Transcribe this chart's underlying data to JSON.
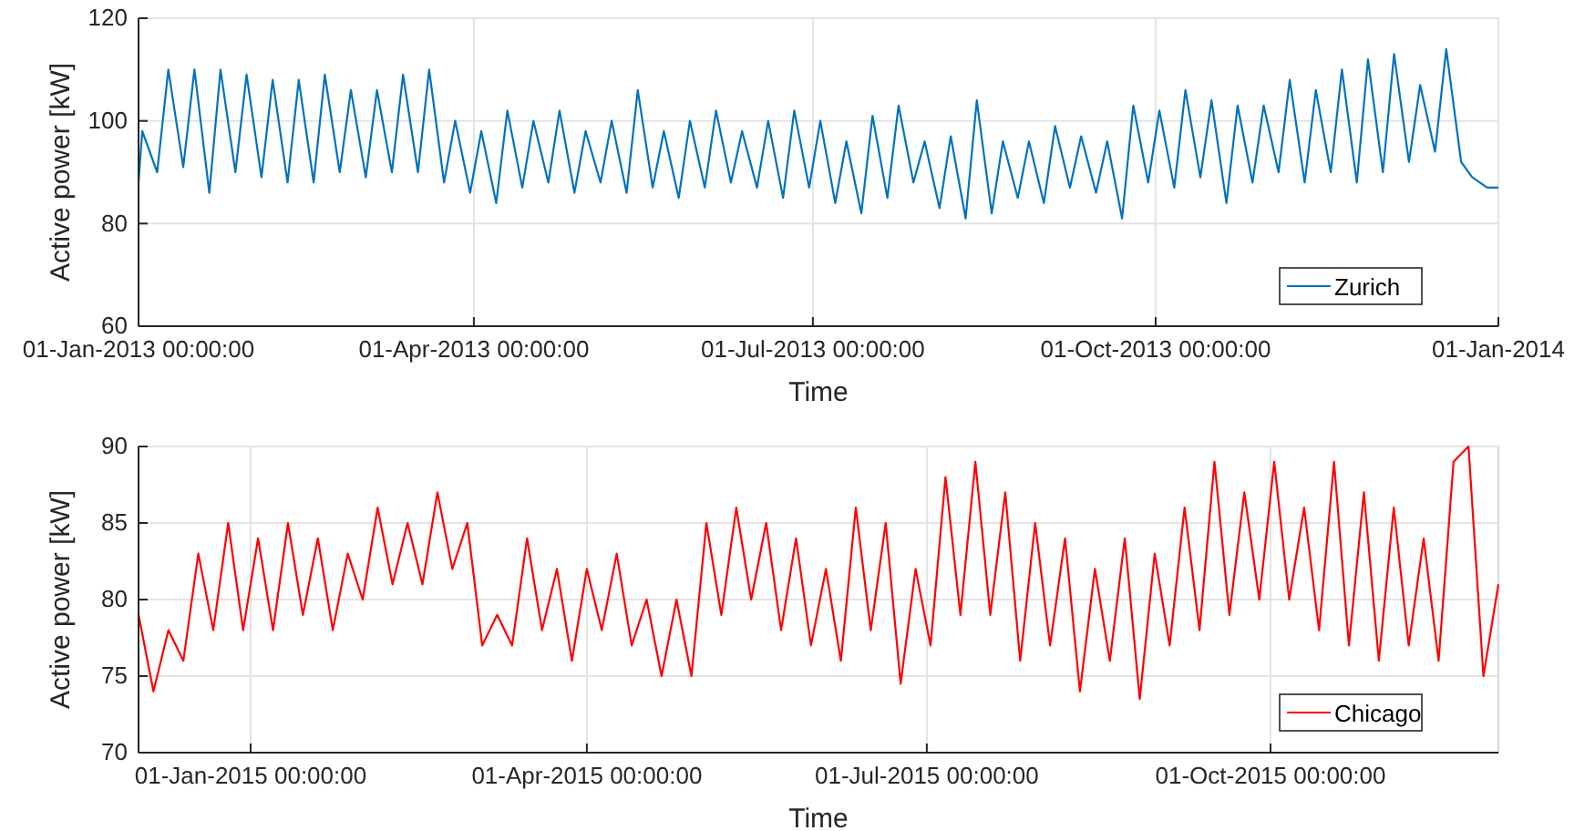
{
  "chart_data": [
    {
      "type": "line",
      "xlabel": "Time",
      "ylabel": "Active power [kW]",
      "xlim": [
        "2013-01-01",
        "2014-01-01"
      ],
      "ylim": [
        60,
        120
      ],
      "yticks": [
        60,
        80,
        100,
        120
      ],
      "xticks": [
        {
          "value": "2013-01-01",
          "label": "01-Jan-2013 00:00:00"
        },
        {
          "value": "2013-04-01",
          "label": "01-Apr-2013 00:00:00"
        },
        {
          "value": "2013-07-01",
          "label": "01-Jul-2013 00:00:00"
        },
        {
          "value": "2013-10-01",
          "label": "01-Oct-2013 00:00:00"
        },
        {
          "value": "2014-01-01",
          "label": "01-Jan-2014"
        }
      ],
      "grid": true,
      "legend": "bottom right",
      "x": [
        "2013-01-01",
        "2013-01-02",
        "2013-01-06",
        "2013-01-09",
        "2013-01-13",
        "2013-01-16",
        "2013-01-20",
        "2013-01-23",
        "2013-01-27",
        "2013-01-30",
        "2013-02-03",
        "2013-02-06",
        "2013-02-10",
        "2013-02-13",
        "2013-02-17",
        "2013-02-20",
        "2013-02-24",
        "2013-02-27",
        "2013-03-03",
        "2013-03-06",
        "2013-03-10",
        "2013-03-13",
        "2013-03-17",
        "2013-03-20",
        "2013-03-24",
        "2013-03-27",
        "2013-03-31",
        "2013-04-03",
        "2013-04-07",
        "2013-04-10",
        "2013-04-14",
        "2013-04-17",
        "2013-04-21",
        "2013-04-24",
        "2013-04-28",
        "2013-05-01",
        "2013-05-05",
        "2013-05-08",
        "2013-05-12",
        "2013-05-15",
        "2013-05-19",
        "2013-05-22",
        "2013-05-26",
        "2013-05-29",
        "2013-06-02",
        "2013-06-05",
        "2013-06-09",
        "2013-06-12",
        "2013-06-16",
        "2013-06-19",
        "2013-06-23",
        "2013-06-26",
        "2013-06-30",
        "2013-07-03",
        "2013-07-07",
        "2013-07-10",
        "2013-07-14",
        "2013-07-17",
        "2013-07-21",
        "2013-07-24",
        "2013-07-28",
        "2013-07-31",
        "2013-08-04",
        "2013-08-07",
        "2013-08-11",
        "2013-08-14",
        "2013-08-18",
        "2013-08-21",
        "2013-08-25",
        "2013-08-28",
        "2013-09-01",
        "2013-09-04",
        "2013-09-08",
        "2013-09-11",
        "2013-09-15",
        "2013-09-18",
        "2013-09-22",
        "2013-09-25",
        "2013-09-29",
        "2013-10-02",
        "2013-10-06",
        "2013-10-09",
        "2013-10-13",
        "2013-10-16",
        "2013-10-20",
        "2013-10-23",
        "2013-10-27",
        "2013-10-30",
        "2013-11-03",
        "2013-11-06",
        "2013-11-10",
        "2013-11-13",
        "2013-11-17",
        "2013-11-20",
        "2013-11-24",
        "2013-11-27",
        "2013-12-01",
        "2013-12-04",
        "2013-12-08",
        "2013-12-11",
        "2013-12-15",
        "2013-12-18",
        "2013-12-22",
        "2013-12-25",
        "2013-12-29",
        "2014-01-01"
      ],
      "series": [
        {
          "name": "Zurich",
          "color": "#0072bd",
          "values": [
            88,
            98,
            90,
            110,
            91,
            110,
            86,
            110,
            90,
            109,
            89,
            108,
            88,
            108,
            88,
            109,
            90,
            106,
            89,
            106,
            90,
            109,
            90,
            110,
            88,
            100,
            86,
            98,
            84,
            102,
            87,
            100,
            88,
            102,
            86,
            98,
            88,
            100,
            86,
            106,
            87,
            98,
            85,
            100,
            87,
            102,
            88,
            98,
            87,
            100,
            85,
            102,
            87,
            100,
            84,
            96,
            82,
            101,
            85,
            103,
            88,
            96,
            83,
            97,
            81,
            104,
            82,
            96,
            85,
            96,
            84,
            99,
            87,
            97,
            86,
            96,
            81,
            103,
            88,
            102,
            87,
            106,
            89,
            104,
            84,
            103,
            88,
            103,
            90,
            108,
            88,
            106,
            90,
            110,
            88,
            112,
            90,
            113,
            92,
            107,
            94,
            114,
            92,
            89,
            87,
            87
          ]
        }
      ]
    },
    {
      "type": "line",
      "xlabel": "Time",
      "ylabel": "Active power [kW]",
      "xlim": [
        "2014-12-02",
        "2015-12-01"
      ],
      "ylim": [
        70,
        90
      ],
      "yticks": [
        70,
        75,
        80,
        85,
        90
      ],
      "xticks": [
        {
          "value": "2015-01-01",
          "label": "01-Jan-2015 00:00:00"
        },
        {
          "value": "2015-04-01",
          "label": "01-Apr-2015 00:00:00"
        },
        {
          "value": "2015-07-01",
          "label": "01-Jul-2015 00:00:00"
        },
        {
          "value": "2015-10-01",
          "label": "01-Oct-2015 00:00:00"
        }
      ],
      "grid": true,
      "legend": "bottom right",
      "x": [
        "2014-12-02",
        "2014-12-06",
        "2014-12-10",
        "2014-12-14",
        "2014-12-18",
        "2014-12-22",
        "2014-12-26",
        "2014-12-30",
        "2015-01-03",
        "2015-01-07",
        "2015-01-11",
        "2015-01-15",
        "2015-01-19",
        "2015-01-23",
        "2015-01-27",
        "2015-01-31",
        "2015-02-04",
        "2015-02-08",
        "2015-02-12",
        "2015-02-16",
        "2015-02-20",
        "2015-02-24",
        "2015-02-28",
        "2015-03-04",
        "2015-03-08",
        "2015-03-12",
        "2015-03-16",
        "2015-03-20",
        "2015-03-24",
        "2015-03-28",
        "2015-04-01",
        "2015-04-05",
        "2015-04-09",
        "2015-04-13",
        "2015-04-17",
        "2015-04-21",
        "2015-04-25",
        "2015-04-29",
        "2015-05-03",
        "2015-05-07",
        "2015-05-11",
        "2015-05-15",
        "2015-05-19",
        "2015-05-23",
        "2015-05-27",
        "2015-05-31",
        "2015-06-04",
        "2015-06-08",
        "2015-06-12",
        "2015-06-16",
        "2015-06-20",
        "2015-06-24",
        "2015-06-28",
        "2015-07-02",
        "2015-07-06",
        "2015-07-10",
        "2015-07-14",
        "2015-07-18",
        "2015-07-22",
        "2015-07-26",
        "2015-07-30",
        "2015-08-03",
        "2015-08-07",
        "2015-08-11",
        "2015-08-15",
        "2015-08-19",
        "2015-08-23",
        "2015-08-27",
        "2015-08-31",
        "2015-09-04",
        "2015-09-08",
        "2015-09-12",
        "2015-09-16",
        "2015-09-20",
        "2015-09-24",
        "2015-09-28",
        "2015-10-02",
        "2015-10-06",
        "2015-10-10",
        "2015-10-14",
        "2015-10-18",
        "2015-10-22",
        "2015-10-26",
        "2015-10-30",
        "2015-11-03",
        "2015-11-07",
        "2015-11-11",
        "2015-11-15",
        "2015-11-19",
        "2015-11-23",
        "2015-11-27",
        "2015-12-01"
      ],
      "series": [
        {
          "name": "Chicago",
          "color": "#ff0000",
          "values": [
            79,
            74,
            78,
            76,
            83,
            78,
            85,
            78,
            84,
            78,
            85,
            79,
            84,
            78,
            83,
            80,
            86,
            81,
            85,
            81,
            87,
            82,
            85,
            77,
            79,
            77,
            84,
            78,
            82,
            76,
            82,
            78,
            83,
            77,
            80,
            75,
            80,
            75,
            85,
            79,
            86,
            80,
            85,
            78,
            84,
            77,
            82,
            76,
            86,
            78,
            85,
            74.5,
            82,
            77,
            88,
            79,
            89,
            79,
            87,
            76,
            85,
            77,
            84,
            74,
            82,
            76,
            84,
            73.5,
            83,
            77,
            86,
            78,
            89,
            79,
            87,
            80,
            89,
            80,
            86,
            78,
            89,
            77,
            87,
            76,
            86,
            77,
            84,
            76,
            89,
            90,
            75,
            81
          ]
        }
      ]
    }
  ]
}
